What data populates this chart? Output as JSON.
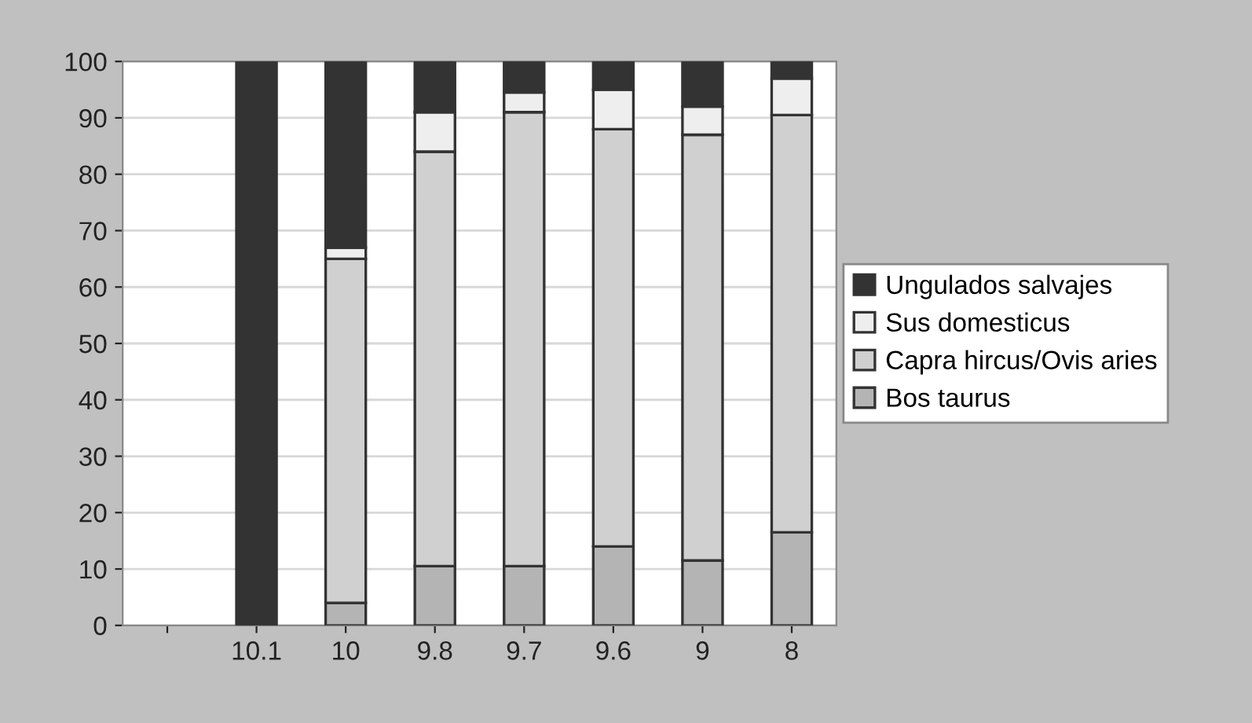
{
  "chart_data": {
    "type": "bar",
    "stacked": true,
    "categories": [
      null,
      "10.1",
      "10",
      "9.8",
      "9.7",
      "9.6",
      "9",
      "8"
    ],
    "series": [
      {
        "name": "Bos taurus",
        "color": "#b4b4b4",
        "values": [
          null,
          0,
          4,
          10.5,
          10.5,
          14,
          11.5,
          16.5
        ]
      },
      {
        "name": "Capra hircus/Ovis aries",
        "color": "#d0d0d0",
        "values": [
          null,
          0,
          61,
          73.5,
          80.5,
          74,
          75.5,
          74
        ]
      },
      {
        "name": "Sus domesticus",
        "color": "#eeeeee",
        "values": [
          null,
          0,
          2,
          7,
          3.5,
          7,
          5,
          6.5
        ]
      },
      {
        "name": "Ungulados salvajes",
        "color": "#333333",
        "values": [
          null,
          100,
          33,
          9,
          5.5,
          5,
          8,
          3
        ]
      }
    ],
    "ylim": [
      0,
      100
    ],
    "yticks": [
      0,
      10,
      20,
      30,
      40,
      50,
      60,
      70,
      80,
      90,
      100
    ],
    "grid": "y",
    "legend": "right"
  }
}
